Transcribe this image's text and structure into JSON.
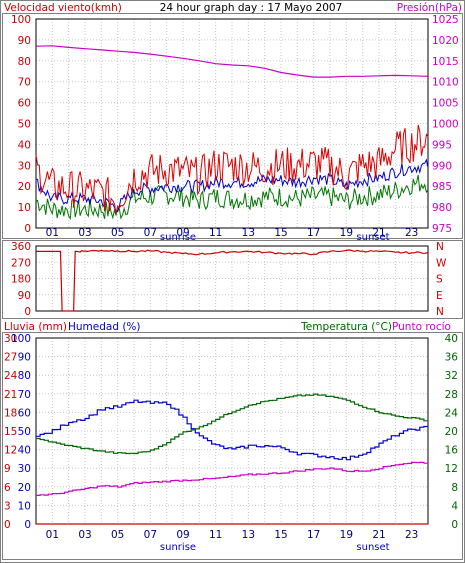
{
  "chart_data": [
    {
      "type": "line",
      "title": "24 hour graph day : 17 Mayo 2007",
      "left_axis": {
        "label": "Velocidad viento(kmh)",
        "range": [
          0,
          100
        ],
        "ticks": [
          "0",
          "10",
          "20",
          "30",
          "40",
          "50",
          "60",
          "70",
          "80",
          "90",
          "100"
        ]
      },
      "right_axis": {
        "label": "Presión(hPa)",
        "range": [
          975,
          1025
        ],
        "ticks": [
          "975",
          "980",
          "985",
          "990",
          "995",
          "1000",
          "1005",
          "1010",
          "1015",
          "1020",
          "1025"
        ]
      },
      "x_ticks": [
        "01",
        "03",
        "05",
        "07",
        "09",
        "11",
        "13",
        "15",
        "17",
        "19",
        "21",
        "23"
      ],
      "x_hours": [
        1,
        3,
        5,
        7,
        9,
        11,
        13,
        15,
        17,
        19,
        21,
        23
      ],
      "annotations": [
        "sunrise",
        "sunset"
      ],
      "hours": [
        0,
        1,
        2,
        3,
        4,
        5,
        6,
        7,
        8,
        9,
        10,
        11,
        12,
        13,
        14,
        15,
        16,
        17,
        18,
        19,
        20,
        21,
        22,
        23,
        24
      ],
      "series": [
        {
          "name": "Presión",
          "axis": "right",
          "color": "#cc00cc",
          "values": [
            1018.5,
            1018.6,
            1018.2,
            1017.9,
            1017.6,
            1017.3,
            1017.0,
            1016.6,
            1016.1,
            1015.6,
            1015.0,
            1014.3,
            1014.0,
            1013.8,
            1013.2,
            1012.2,
            1011.6,
            1011.1,
            1011.1,
            1011.3,
            1011.3,
            1011.4,
            1011.5,
            1011.4,
            1011.3
          ]
        },
        {
          "color": "#dd0000",
          "values": [
            28,
            20,
            19,
            18,
            17,
            13,
            25,
            27,
            28,
            27,
            25,
            30,
            30,
            29,
            29,
            30,
            30,
            31,
            30,
            25,
            30,
            31,
            38,
            40,
            43
          ]
        },
        {
          "color": "#0000cc",
          "values": [
            22,
            14,
            14,
            14,
            13,
            10,
            18,
            19,
            20,
            20,
            20,
            22,
            22,
            22,
            23,
            23,
            22,
            24,
            23,
            20,
            23,
            24,
            27,
            29,
            30
          ]
        },
        {
          "color": "#007700",
          "values": [
            13,
            9,
            9,
            9,
            9,
            7,
            14,
            15,
            16,
            15,
            13,
            15,
            14,
            14,
            15,
            15,
            14,
            15,
            15,
            13,
            15,
            16,
            18,
            21,
            22
          ]
        }
      ]
    },
    {
      "type": "line",
      "right_labels": [
        "N",
        "W",
        "S",
        "E",
        "N"
      ],
      "left_ticks": [
        "0",
        "90",
        "180",
        "270",
        "360"
      ],
      "range": [
        0,
        360
      ],
      "series": [
        {
          "color": "#cc0000",
          "x": [
            0,
            0.5,
            1.0,
            1.5,
            1.6,
            2.3,
            2.4,
            3,
            4,
            5,
            6,
            7,
            8,
            9,
            10,
            11,
            12,
            13,
            14,
            15,
            16,
            17,
            18,
            19,
            20,
            21,
            22,
            23,
            24
          ],
          "values": [
            330,
            330,
            330,
            330,
            0,
            0,
            330,
            332,
            335,
            333,
            330,
            333,
            325,
            318,
            315,
            322,
            328,
            330,
            325,
            320,
            318,
            315,
            330,
            335,
            332,
            330,
            325,
            322,
            325
          ]
        }
      ]
    },
    {
      "type": "line",
      "left_axis_1": {
        "label": "Lluvia (mm)",
        "range": [
          0,
          30
        ],
        "ticks": [
          "0",
          "3",
          "6",
          "9",
          "12",
          "15",
          "18",
          "21",
          "24",
          "27",
          "30"
        ]
      },
      "left_axis_2": {
        "label": "Humedad (%)",
        "range": [
          0,
          100
        ],
        "ticks": [
          "0",
          "10",
          "20",
          "30",
          "40",
          "50",
          "60",
          "70",
          "80",
          "90",
          "100"
        ]
      },
      "right_axis": {
        "label": "Temperatura (°C)",
        "label2": "Punto rocío",
        "range": [
          0,
          40
        ],
        "ticks": [
          "0",
          "4",
          "8",
          "12",
          "16",
          "20",
          "24",
          "28",
          "32",
          "36",
          "40"
        ]
      },
      "x_ticks": [
        "01",
        "03",
        "05",
        "07",
        "09",
        "11",
        "13",
        "15",
        "17",
        "19",
        "21",
        "23"
      ],
      "annotations": [
        "sunrise",
        "sunset"
      ],
      "hours": [
        0,
        1,
        2,
        3,
        4,
        5,
        6,
        7,
        8,
        9,
        10,
        11,
        12,
        13,
        14,
        15,
        16,
        17,
        18,
        19,
        20,
        21,
        22,
        23,
        24
      ],
      "series": [
        {
          "name": "Humedad",
          "axis": "left2",
          "color": "#0000cc",
          "values": [
            47,
            50,
            55,
            57,
            62,
            63,
            66,
            65,
            65,
            57,
            47,
            42,
            40,
            42,
            42,
            41,
            38,
            37,
            36,
            35,
            38,
            43,
            48,
            51,
            52
          ]
        },
        {
          "name": "Temperatura",
          "axis": "right",
          "color": "#006600",
          "values": [
            18.5,
            17.5,
            16.8,
            16.2,
            15.6,
            15.2,
            15.2,
            15.8,
            17.6,
            19.8,
            20.8,
            22.6,
            24.2,
            25.6,
            26.4,
            27.0,
            27.6,
            27.8,
            27.4,
            26.6,
            25.2,
            24.0,
            23.2,
            22.8,
            22.2
          ]
        },
        {
          "name": "Punto rocío",
          "axis": "right",
          "color": "#cc00cc",
          "values": [
            6.2,
            6.4,
            7.0,
            7.6,
            8.2,
            8.0,
            8.8,
            9.0,
            9.2,
            9.4,
            9.6,
            9.8,
            10.2,
            10.6,
            10.8,
            11.0,
            11.4,
            11.8,
            12.0,
            11.4,
            11.4,
            12.0,
            12.8,
            13.2,
            13.2
          ]
        },
        {
          "name": "Lluvia",
          "axis": "left1",
          "color": "#cc0000",
          "values": [
            0,
            0,
            0,
            0,
            0,
            0,
            0,
            0,
            0,
            0,
            0,
            0,
            0,
            0,
            0,
            0,
            0,
            0,
            0,
            0,
            0,
            0,
            0,
            0,
            0
          ]
        }
      ]
    }
  ]
}
